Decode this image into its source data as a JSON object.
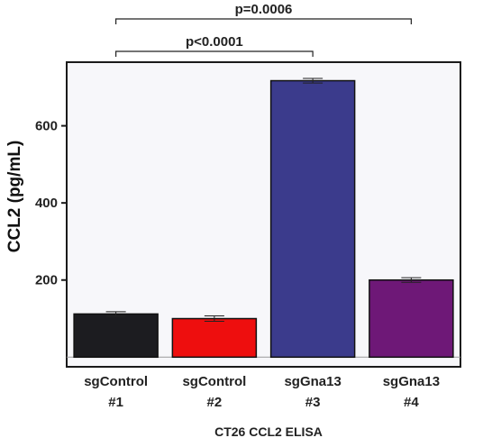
{
  "chart_data": {
    "type": "bar",
    "categories": [
      [
        "sgControl",
        "#1"
      ],
      [
        "sgControl",
        "#2"
      ],
      [
        "sgGna13",
        "#3"
      ],
      [
        "sgGna13",
        "#4"
      ]
    ],
    "values": [
      112,
      100,
      717,
      200
    ],
    "errors": [
      6,
      7,
      6,
      6
    ],
    "colors": [
      "#1c1c20",
      "#ee0e0e",
      "#3b3b8c",
      "#6e1877"
    ],
    "ylabel": "CCL2 (pg/mL)",
    "xlabel": "CT26 CCL2 ELISA",
    "ylim": [
      -25,
      765
    ],
    "yticks": [
      200,
      400,
      600
    ],
    "baseline": 0,
    "plot_background": "#f7f7fa",
    "annotations": [
      {
        "label": "p<0.0001",
        "from": 0,
        "to": 2
      },
      {
        "label": "p=0.0006",
        "from": 0,
        "to": 3
      }
    ]
  }
}
